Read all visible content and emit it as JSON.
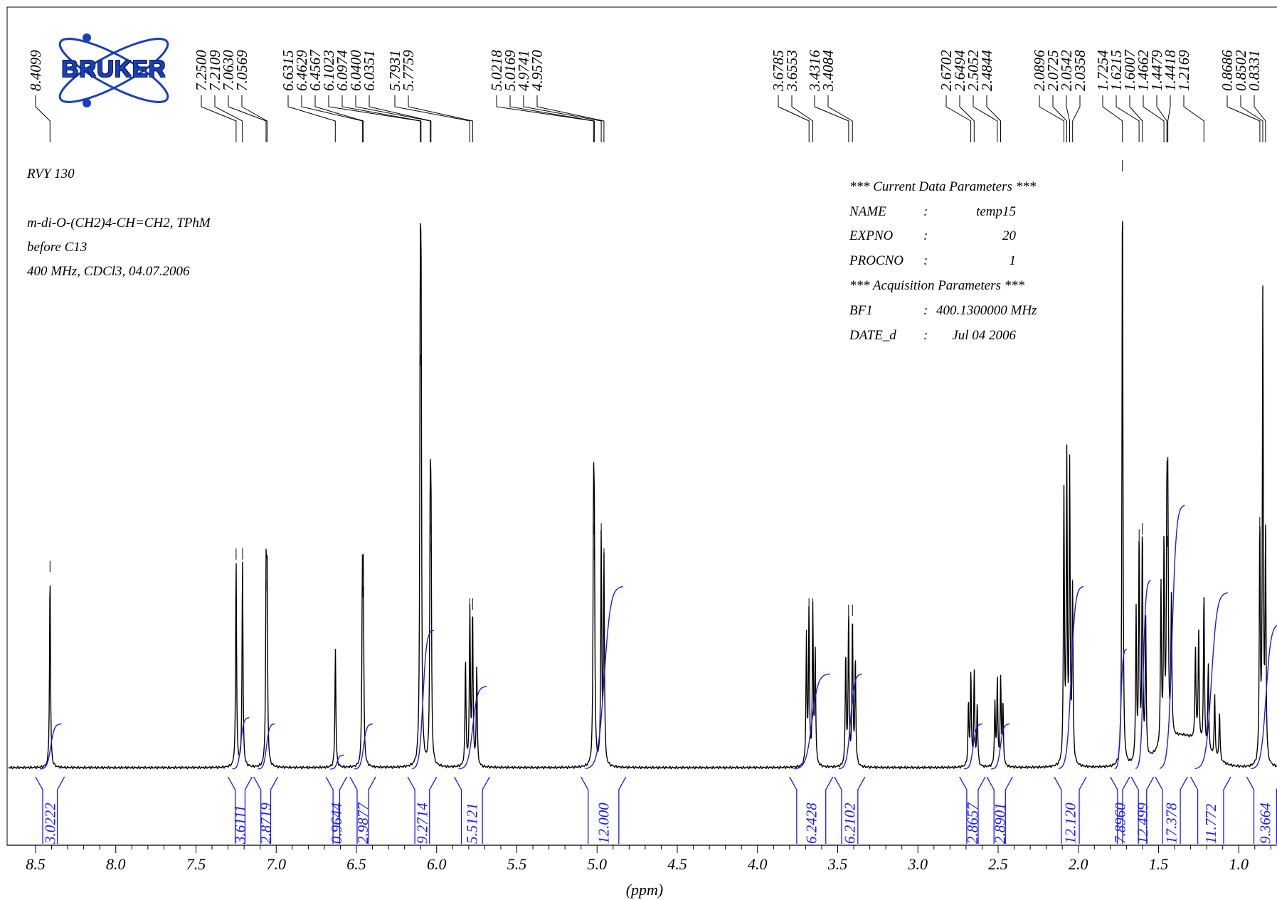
{
  "chart_data": {
    "type": "line",
    "title": "",
    "xlabel": "(ppm)",
    "xlim": [
      8.6,
      0.72
    ],
    "x_reversed": true,
    "xticks": [
      "8.5",
      "8.0",
      "7.5",
      "7.0",
      "6.5",
      "6.0",
      "5.5",
      "5.0",
      "4.5",
      "4.0",
      "3.5",
      "3.0",
      "2.5",
      "2.0",
      "1.5",
      "1.0"
    ],
    "grid": false,
    "sample": {
      "name": "RVY 130",
      "description": "m-di-O-(CH2)4-CH=CH2, TPhM",
      "note": "before C13",
      "conditions": "400 MHz, CDCl3, 04.07.2006"
    },
    "params": {
      "current_header": "*** Current Data Parameters ***",
      "acq_header": "*** Acquisition  Parameters ***",
      "rows": [
        {
          "key": "NAME",
          "sep": ":",
          "val": "temp15"
        },
        {
          "key": "EXPNO",
          "sep": ":",
          "val": "20"
        },
        {
          "key": "PROCNO",
          "sep": ":",
          "val": "1"
        },
        {
          "key": "BF1",
          "sep": ":",
          "val": "400.1300000 MHz"
        },
        {
          "key": "DATE_d",
          "sep": ":",
          "val": "Jul 04 2006"
        }
      ]
    },
    "peak_labels": [
      "8.4099",
      "7.2500",
      "7.2109",
      "7.0630",
      "7.0569",
      "6.6315",
      "6.4629",
      "6.4567",
      "6.1023",
      "6.0974",
      "6.0400",
      "6.0351",
      "5.7931",
      "5.7759",
      "5.0218",
      "5.0169",
      "4.9741",
      "4.9570",
      "3.6785",
      "3.6553",
      "3.4316",
      "3.4084",
      "2.6702",
      "2.6494",
      "2.5052",
      "2.4844",
      "2.0896",
      "2.0725",
      "2.0542",
      "2.0358",
      "1.7254",
      "1.6215",
      "1.6007",
      "1.4662",
      "1.4479",
      "1.4418",
      "1.2169",
      "0.8686",
      "0.8502",
      "0.8331"
    ],
    "peaks": [
      {
        "ppm": 8.41,
        "h": 0.31
      },
      {
        "ppm": 7.25,
        "h": 0.33
      },
      {
        "ppm": 7.21,
        "h": 0.33
      },
      {
        "ppm": 7.063,
        "h": 0.28
      },
      {
        "ppm": 7.057,
        "h": 0.28
      },
      {
        "ppm": 6.631,
        "h": 0.19
      },
      {
        "ppm": 6.463,
        "h": 0.27
      },
      {
        "ppm": 6.457,
        "h": 0.27
      },
      {
        "ppm": 6.102,
        "h": 0.64
      },
      {
        "ppm": 6.097,
        "h": 0.64
      },
      {
        "ppm": 6.04,
        "h": 0.37
      },
      {
        "ppm": 6.035,
        "h": 0.34
      },
      {
        "ppm": 5.82,
        "h": 0.17
      },
      {
        "ppm": 5.793,
        "h": 0.25
      },
      {
        "ppm": 5.776,
        "h": 0.25
      },
      {
        "ppm": 5.75,
        "h": 0.16
      },
      {
        "ppm": 5.022,
        "h": 0.37
      },
      {
        "ppm": 5.017,
        "h": 0.33
      },
      {
        "ppm": 4.974,
        "h": 0.37
      },
      {
        "ppm": 4.957,
        "h": 0.33
      },
      {
        "ppm": 3.695,
        "h": 0.2
      },
      {
        "ppm": 3.679,
        "h": 0.25
      },
      {
        "ppm": 3.655,
        "h": 0.25
      },
      {
        "ppm": 3.64,
        "h": 0.18
      },
      {
        "ppm": 3.45,
        "h": 0.18
      },
      {
        "ppm": 3.432,
        "h": 0.24
      },
      {
        "ppm": 3.408,
        "h": 0.24
      },
      {
        "ppm": 3.39,
        "h": 0.17
      },
      {
        "ppm": 2.685,
        "h": 0.1
      },
      {
        "ppm": 2.67,
        "h": 0.15
      },
      {
        "ppm": 2.649,
        "h": 0.15
      },
      {
        "ppm": 2.63,
        "h": 0.1
      },
      {
        "ppm": 2.52,
        "h": 0.1
      },
      {
        "ppm": 2.505,
        "h": 0.14
      },
      {
        "ppm": 2.484,
        "h": 0.14
      },
      {
        "ppm": 2.47,
        "h": 0.1
      },
      {
        "ppm": 2.09,
        "h": 0.43
      },
      {
        "ppm": 2.072,
        "h": 0.48
      },
      {
        "ppm": 2.054,
        "h": 0.47
      },
      {
        "ppm": 2.036,
        "h": 0.28
      },
      {
        "ppm": 1.725,
        "h": 0.95
      },
      {
        "ppm": 1.64,
        "h": 0.24
      },
      {
        "ppm": 1.621,
        "h": 0.36
      },
      {
        "ppm": 1.601,
        "h": 0.37
      },
      {
        "ppm": 1.58,
        "h": 0.22
      },
      {
        "ppm": 1.485,
        "h": 0.26
      },
      {
        "ppm": 1.466,
        "h": 0.32
      },
      {
        "ppm": 1.448,
        "h": 0.35
      },
      {
        "ppm": 1.442,
        "h": 0.35
      },
      {
        "ppm": 1.42,
        "h": 0.22
      },
      {
        "ppm": 1.217,
        "h": 0.25
      },
      {
        "ppm": 1.25,
        "h": 0.18
      },
      {
        "ppm": 1.27,
        "h": 0.15
      },
      {
        "ppm": 1.19,
        "h": 0.14
      },
      {
        "ppm": 1.15,
        "h": 0.1
      },
      {
        "ppm": 1.12,
        "h": 0.08
      },
      {
        "ppm": 0.869,
        "h": 0.38
      },
      {
        "ppm": 0.85,
        "h": 0.75
      },
      {
        "ppm": 0.833,
        "h": 0.36
      }
    ],
    "integrals": [
      {
        "label": "3.0222",
        "from": 8.5,
        "to": 8.32,
        "level": 0.07
      },
      {
        "label": "3.6111",
        "from": 7.3,
        "to": 7.15,
        "level": 0.08
      },
      {
        "label": "2.8719",
        "from": 7.14,
        "to": 6.99,
        "level": 0.07
      },
      {
        "label": "0.9644",
        "from": 6.69,
        "to": 6.56,
        "level": 0.02
      },
      {
        "label": "2.9877",
        "from": 6.54,
        "to": 6.38,
        "level": 0.07
      },
      {
        "label": "9.2714",
        "from": 6.18,
        "to": 6.0,
        "level": 0.22
      },
      {
        "label": "5.5121",
        "from": 5.89,
        "to": 5.67,
        "level": 0.13
      },
      {
        "label": "12.000",
        "from": 5.1,
        "to": 4.82,
        "level": 0.29
      },
      {
        "label": "6.2428",
        "from": 3.8,
        "to": 3.53,
        "level": 0.15
      },
      {
        "label": "6.2102",
        "from": 3.52,
        "to": 3.33,
        "level": 0.15
      },
      {
        "label": "2.8657",
        "from": 2.74,
        "to": 2.58,
        "level": 0.07
      },
      {
        "label": "2.8901",
        "from": 2.57,
        "to": 2.41,
        "level": 0.07
      },
      {
        "label": "12.120",
        "from": 2.15,
        "to": 1.95,
        "level": 0.29
      },
      {
        "label": "7.8960",
        "from": 1.8,
        "to": 1.68,
        "level": 0.19
      },
      {
        "label": "12.499",
        "from": 1.67,
        "to": 1.53,
        "level": 0.3
      },
      {
        "label": "17.378",
        "from": 1.52,
        "to": 1.32,
        "level": 0.42
      },
      {
        "label": "11.772",
        "from": 1.3,
        "to": 1.05,
        "level": 0.28
      },
      {
        "label": "9.3664",
        "from": 0.95,
        "to": 0.72,
        "level": 0.23
      }
    ]
  },
  "brand": {
    "logo_text": "BRUKER",
    "spectrum_color": "#000000",
    "integral_color": "#1a1aff",
    "logo_color": "#1a3fb8"
  }
}
